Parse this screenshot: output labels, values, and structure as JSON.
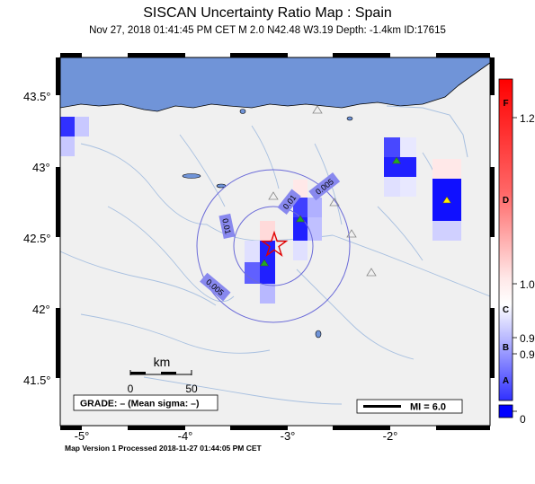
{
  "title": "SISCAN Uncertainty Ratio Map : Spain",
  "subtitle": "Nov 27, 2018 01:41:45 PM CET   M 2.0   N42.48 W3.19   Depth: -1.4km   ID:17615",
  "footer": "Map Version 1 Processed 2018-11-27 01:44:05 PM CET",
  "axes": {
    "lat_labels": [
      "43.5°",
      "43°",
      "42.5°",
      "42°",
      "41.5°"
    ],
    "lon_labels": [
      "-5°",
      "-4°",
      "-3°",
      "-2°"
    ]
  },
  "scalebar": {
    "label": "km",
    "start": "0",
    "end": "50"
  },
  "grade_box": "GRADE: – (Mean sigma: –)",
  "mi_legend": "MI = 6.0",
  "contour_labels": [
    "0.005",
    "0.01",
    "0.01",
    "0.005"
  ],
  "colorbar": {
    "letters": [
      "F",
      "D",
      "C",
      "B",
      "A"
    ],
    "values": [
      "1.2",
      "1.0",
      "0.9",
      "0.9",
      "0"
    ]
  },
  "epicenter": {
    "lat": 42.48,
    "lon": -3.19,
    "magnitude": 2.0
  },
  "colors": {
    "sea": "#7094d8",
    "land": "#f0f0f0",
    "rivers": "#a8c0e0",
    "high_ratio": "#0000ff",
    "low_ratio": "#ff0000",
    "epicenter_star": "#e00000"
  },
  "icons": [
    "station-triangle-icon",
    "epicenter-star-icon"
  ]
}
